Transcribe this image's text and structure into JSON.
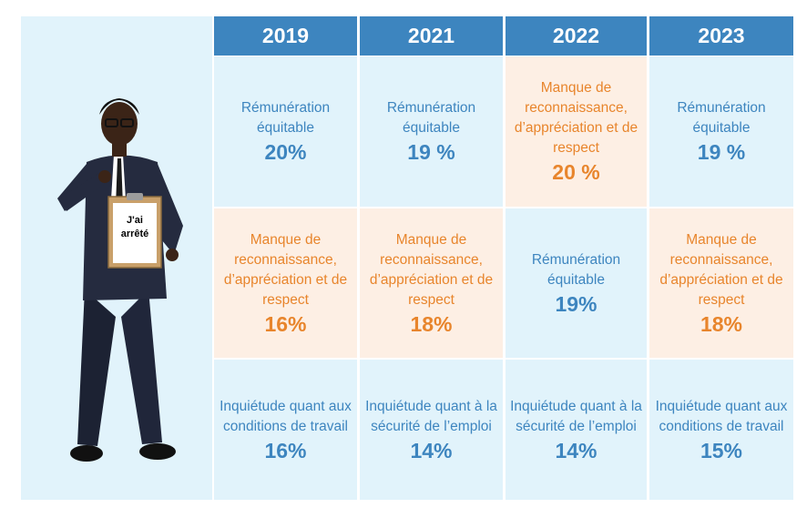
{
  "figure": {
    "clipboard_text": "J'ai arrêté"
  },
  "chart_data": {
    "type": "table",
    "columns": [
      "2019",
      "2021",
      "2022",
      "2023"
    ],
    "rows": [
      [
        {
          "label": "Rémunération équitable",
          "value": "20%",
          "category": "blue"
        },
        {
          "label": "Rémunération équitable",
          "value": "19 %",
          "category": "blue"
        },
        {
          "label": "Manque de reconnaissance, d’appréciation et de respect",
          "value": "20 %",
          "category": "orange"
        },
        {
          "label": "Rémunération équitable",
          "value": "19 %",
          "category": "blue"
        }
      ],
      [
        {
          "label": "Manque de reconnaissance, d’appréciation et de respect",
          "value": "16%",
          "category": "orange"
        },
        {
          "label": "Manque de reconnaissance, d’appréciation et de respect",
          "value": "18%",
          "category": "orange"
        },
        {
          "label": "Rémunération équitable",
          "value": "19%",
          "category": "blue"
        },
        {
          "label": "Manque de reconnaissance, d’appréciation et de respect",
          "value": "18%",
          "category": "orange"
        }
      ],
      [
        {
          "label": "Inquiétude quant aux conditions de travail",
          "value": "16%",
          "category": "blue"
        },
        {
          "label": "Inquiétude quant à la sécurité de l’emploi",
          "value": "14%",
          "category": "blue"
        },
        {
          "label": "Inquiétude quant à la sécurité de l’emploi",
          "value": "14%",
          "category": "blue"
        },
        {
          "label": "Inquiétude quant aux conditions de travail",
          "value": "15%",
          "category": "blue"
        }
      ]
    ]
  },
  "colors": {
    "header": "#3d85bf",
    "blue_bg": "#e1f3fb",
    "blue_text": "#3d85bf",
    "orange_bg": "#fdefe4",
    "orange_text": "#e8852c"
  }
}
